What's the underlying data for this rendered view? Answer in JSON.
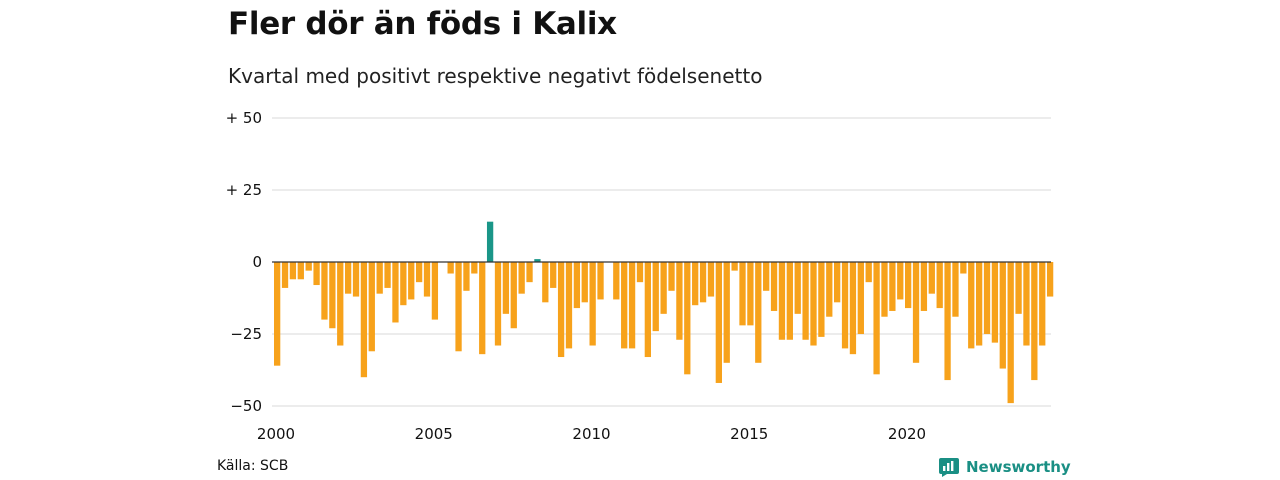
{
  "title": "Fler dör än föds i Kalix",
  "subtitle": "Kvartal med positivt respektive negativt födelsenetto",
  "source": "Källa: SCB",
  "brand": {
    "name": "Newsworthy",
    "icon": "newsworthy-logo-icon"
  },
  "colors": {
    "positive": "#1a9688",
    "negative": "#f7a21b",
    "grid": "#d9d9d9",
    "zero": "#333333"
  },
  "chart_data": {
    "type": "bar",
    "title": "Fler dör än föds i Kalix",
    "subtitle": "Kvartal med positivt respektive negativt födelsenetto",
    "xlabel": "",
    "ylabel": "",
    "ylim": [
      -50,
      50
    ],
    "xlim": [
      2000,
      2024.75
    ],
    "yticks": [
      {
        "value": 50,
        "label": "+ 50"
      },
      {
        "value": 25,
        "label": "+ 25"
      },
      {
        "value": 0,
        "label": "0"
      },
      {
        "value": -25,
        "label": "−25"
      },
      {
        "value": -50,
        "label": "−50"
      }
    ],
    "xticks": [
      "2000",
      "2005",
      "2010",
      "2015",
      "2020"
    ],
    "grid": true,
    "start": "2000 Q1",
    "frequency": "quarterly",
    "values": [
      -36,
      -9,
      -6,
      -6,
      -3,
      -8,
      -20,
      -23,
      -29,
      -11,
      -12,
      -40,
      -31,
      -11,
      -9,
      -21,
      -15,
      -13,
      -7,
      -12,
      -20,
      0,
      -4,
      -31,
      -10,
      -4,
      -32,
      14,
      -29,
      -18,
      -23,
      -11,
      -7,
      1,
      -14,
      -9,
      -33,
      -30,
      -16,
      -14,
      -29,
      -13,
      0,
      -13,
      -30,
      -30,
      -7,
      -33,
      -24,
      -18,
      -10,
      -27,
      -39,
      -15,
      -14,
      -12,
      -42,
      -35,
      -3,
      -22,
      -22,
      -35,
      -10,
      -17,
      -27,
      -27,
      -18,
      -27,
      -29,
      -26,
      -19,
      -14,
      -30,
      -32,
      -25,
      -7,
      -39,
      -19,
      -17,
      -13,
      -16,
      -35,
      -17,
      -11,
      -16,
      -41,
      -19,
      -4,
      -30,
      -29,
      -25,
      -28,
      -37,
      -49,
      -18,
      -29,
      -41,
      -29,
      -12
    ]
  }
}
